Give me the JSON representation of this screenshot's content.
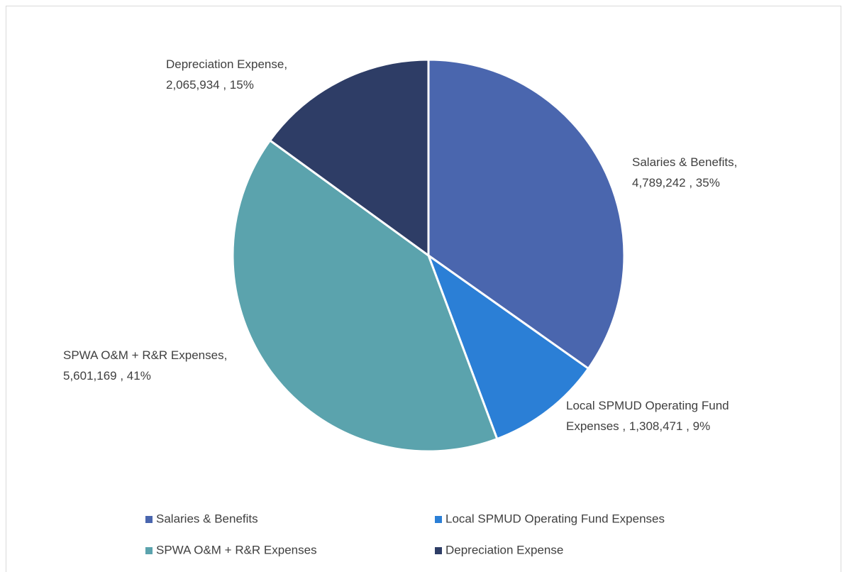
{
  "chart_data": {
    "type": "pie",
    "categories": [
      "Salaries & Benefits",
      "Local SPMUD Operating Fund Expenses",
      "SPWA O&M + R&R Expenses",
      "Depreciation Expense"
    ],
    "values": [
      4789242,
      1308471,
      5601169,
      2065934
    ],
    "value_labels": [
      "Salaries & Benefits, 4,789,242 , 35%",
      "Local SPMUD Operating Fund Expenses , 1,308,471 , 9%",
      "SPWA O&M + R&R Expenses, 5,601,169 , 41%",
      "Depreciation Expense, 2,065,934 , 15%"
    ],
    "colors": [
      "#4a66ae",
      "#2b7fd6",
      "#5ba3ad",
      "#2e3d66"
    ],
    "legend": "bottom"
  }
}
